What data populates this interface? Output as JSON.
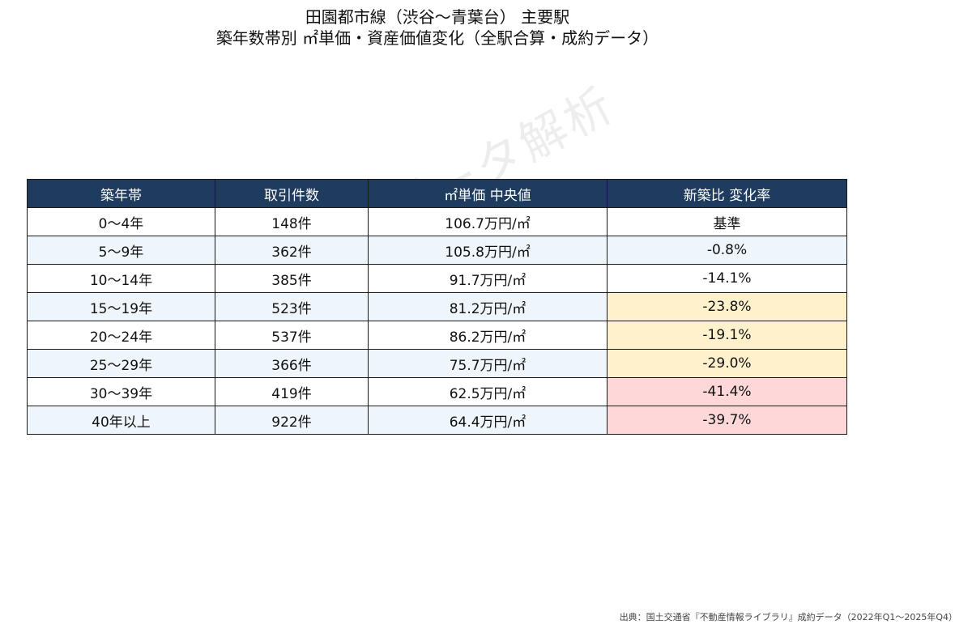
{
  "title": {
    "line1": "田園都市線（渋谷〜青葉台） 主要駅",
    "line2": "築年数帯別 ㎡単価・資産価値変化（全駅合算・成約データ）"
  },
  "watermark": "© 不動産データ解析",
  "table": {
    "headers": [
      "築年帯",
      "取引件数",
      "㎡単価 中央値",
      "新築比 変化率"
    ],
    "rows": [
      {
        "age": "0〜4年",
        "count": "148件",
        "price": "106.7万円/㎡",
        "change": "基準",
        "highlight": "none"
      },
      {
        "age": "5〜9年",
        "count": "362件",
        "price": "105.8万円/㎡",
        "change": "-0.8%",
        "highlight": "none"
      },
      {
        "age": "10〜14年",
        "count": "385件",
        "price": "91.7万円/㎡",
        "change": "-14.1%",
        "highlight": "none"
      },
      {
        "age": "15〜19年",
        "count": "523件",
        "price": "81.2万円/㎡",
        "change": "-23.8%",
        "highlight": "yellow"
      },
      {
        "age": "20〜24年",
        "count": "537件",
        "price": "86.2万円/㎡",
        "change": "-19.1%",
        "highlight": "yellow"
      },
      {
        "age": "25〜29年",
        "count": "366件",
        "price": "75.7万円/㎡",
        "change": "-29.0%",
        "highlight": "yellow"
      },
      {
        "age": "30〜39年",
        "count": "419件",
        "price": "62.5万円/㎡",
        "change": "-41.4%",
        "highlight": "red"
      },
      {
        "age": "40年以上",
        "count": "922件",
        "price": "64.4万円/㎡",
        "change": "-39.7%",
        "highlight": "red"
      }
    ]
  },
  "colors": {
    "header_bg": "#1f3b5e",
    "row_alt_bg": "#eef5fb",
    "highlight_yellow": "#fff1cc",
    "highlight_red": "#fed7d9"
  },
  "source": "出典：国土交通省『不動産情報ライブラリ』成約データ（2022年Q1〜2025年Q4）"
}
